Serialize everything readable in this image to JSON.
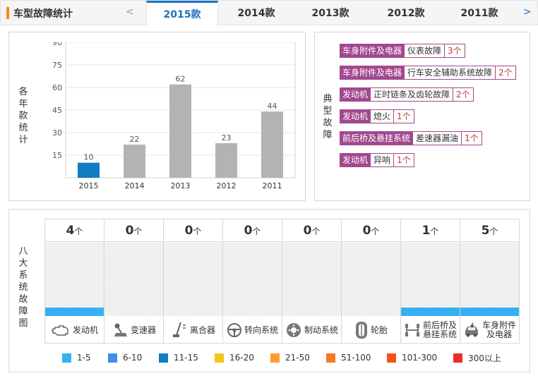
{
  "header": {
    "title": "车型故障统计",
    "prev_arrow": "<",
    "next_arrow": ">",
    "tabs": [
      {
        "label": "2015款",
        "active": true
      },
      {
        "label": "2014款",
        "active": false
      },
      {
        "label": "2013款",
        "active": false
      },
      {
        "label": "2012款",
        "active": false
      },
      {
        "label": "2011款",
        "active": false
      }
    ]
  },
  "year_chart": {
    "side_label": [
      "各",
      "年",
      "款",
      "统",
      "计"
    ],
    "chart_data": {
      "type": "bar",
      "categories": [
        "2015",
        "2014",
        "2013",
        "2012",
        "2011"
      ],
      "values": [
        10,
        22,
        62,
        23,
        44
      ],
      "yticks": [
        15,
        30,
        45,
        60,
        75,
        90
      ],
      "ylim": [
        0,
        90
      ],
      "colors": [
        "#0f7dc2",
        "#b3b3b3",
        "#b3b3b3",
        "#b3b3b3",
        "#b3b3b3"
      ]
    }
  },
  "typical_faults": {
    "side_label": [
      "典",
      "型",
      "故",
      "障"
    ],
    "items": [
      {
        "category": "车身附件及电器",
        "fault": "仪表故障",
        "count": "3个"
      },
      {
        "category": "车身附件及电器",
        "fault": "行车安全辅助系统故障",
        "count": "2个"
      },
      {
        "category": "发动机",
        "fault": "正时链条及齿轮故障",
        "count": "2个"
      },
      {
        "category": "发动机",
        "fault": "熄火",
        "count": "1个"
      },
      {
        "category": "前后桥及悬挂系统",
        "fault": "差速器漏油",
        "count": "1个"
      },
      {
        "category": "发动机",
        "fault": "异响",
        "count": "1个"
      }
    ],
    "accent": "#a2488f"
  },
  "systems": {
    "side_label": [
      "八",
      "大",
      "系",
      "统",
      "故",
      "障",
      "图"
    ],
    "unit": "个",
    "fill_color": "#36b0f1",
    "items": [
      {
        "name": "发动机",
        "count": 4,
        "fill_pct": 12,
        "icon": "engine-icon"
      },
      {
        "name": "变速器",
        "count": 0,
        "fill_pct": 0,
        "icon": "gear-shift-icon"
      },
      {
        "name": "离合器",
        "count": 0,
        "fill_pct": 0,
        "icon": "clutch-pedal-icon"
      },
      {
        "name": "转向系统",
        "count": 0,
        "fill_pct": 0,
        "icon": "steering-wheel-icon"
      },
      {
        "name": "制动系统",
        "count": 0,
        "fill_pct": 0,
        "icon": "brake-disc-icon"
      },
      {
        "name": "轮胎",
        "count": 0,
        "fill_pct": 0,
        "icon": "tire-icon"
      },
      {
        "name": "前后桥及悬挂系统",
        "name_lines": [
          "前后桥及",
          "悬挂系统"
        ],
        "count": 1,
        "fill_pct": 12,
        "icon": "suspension-icon"
      },
      {
        "name": "车身附件及电器",
        "name_lines": [
          "车身附件",
          "及电器"
        ],
        "count": 5,
        "fill_pct": 12,
        "icon": "car-body-icon"
      }
    ]
  },
  "legend": [
    {
      "label": "1-5",
      "color": "#36b0f1"
    },
    {
      "label": "6-10",
      "color": "#3d8fe6"
    },
    {
      "label": "11-15",
      "color": "#0f7dc2"
    },
    {
      "label": "16-20",
      "color": "#f5c51a"
    },
    {
      "label": "21-50",
      "color": "#ff9a2e"
    },
    {
      "label": "51-100",
      "color": "#f7782c"
    },
    {
      "label": "101-300",
      "color": "#f4511e"
    },
    {
      "label": "300以上",
      "color": "#ee2b2b"
    }
  ]
}
